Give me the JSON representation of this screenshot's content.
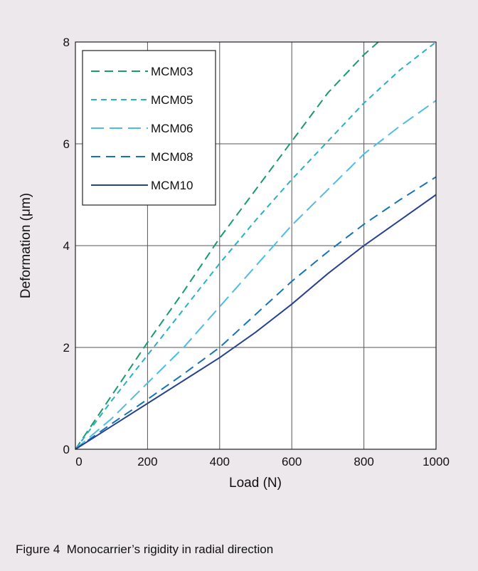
{
  "figure": {
    "caption": "Figure 4  Monocarrier’s rigidity in radial direction"
  },
  "chart_data": {
    "type": "line",
    "title": "",
    "xlabel": "Load (N)",
    "ylabel": "Deformation (μm)",
    "xlim": [
      0,
      1000
    ],
    "ylim": [
      0,
      8
    ],
    "xticks": [
      "0",
      "200",
      "400",
      "600",
      "800",
      "1000"
    ],
    "yticks": [
      "0",
      "2",
      "4",
      "6",
      "8"
    ],
    "grid": true,
    "legend_position": "top-left",
    "series": [
      {
        "name": "MCM03",
        "color": "#1a9a72",
        "dash": "12,7",
        "x": [
          0,
          100,
          200,
          300,
          400,
          500,
          600,
          700,
          800,
          840
        ],
        "y": [
          0,
          1.05,
          2.1,
          3.1,
          4.15,
          5.1,
          6.05,
          7.0,
          7.75,
          8.0
        ]
      },
      {
        "name": "MCM05",
        "color": "#2ab1c2",
        "dash": "8,6",
        "x": [
          0,
          100,
          200,
          300,
          400,
          500,
          600,
          700,
          800,
          900,
          1000
        ],
        "y": [
          0,
          0.95,
          1.85,
          2.75,
          3.65,
          4.5,
          5.3,
          6.05,
          6.8,
          7.45,
          8.0
        ]
      },
      {
        "name": "MCM06",
        "color": "#4dbde6",
        "dash": "18,8",
        "x": [
          0,
          100,
          200,
          300,
          400,
          500,
          600,
          700,
          800,
          900,
          1000
        ],
        "y": [
          0,
          0.6,
          1.3,
          2.0,
          2.8,
          3.6,
          4.4,
          5.1,
          5.8,
          6.35,
          6.85
        ]
      },
      {
        "name": "MCM08",
        "color": "#1673b5",
        "dash": "13,8",
        "x": [
          0,
          100,
          200,
          300,
          400,
          500,
          600,
          700,
          800,
          900,
          1000
        ],
        "y": [
          0,
          0.5,
          0.98,
          1.48,
          2.0,
          2.65,
          3.3,
          3.88,
          4.42,
          4.9,
          5.35
        ]
      },
      {
        "name": "MCM10",
        "color": "#27428f",
        "dash": "",
        "x": [
          0,
          100,
          200,
          300,
          400,
          500,
          600,
          700,
          800,
          900,
          1000
        ],
        "y": [
          0,
          0.45,
          0.9,
          1.35,
          1.8,
          2.3,
          2.85,
          3.45,
          4.0,
          4.5,
          5.0
        ]
      }
    ]
  }
}
